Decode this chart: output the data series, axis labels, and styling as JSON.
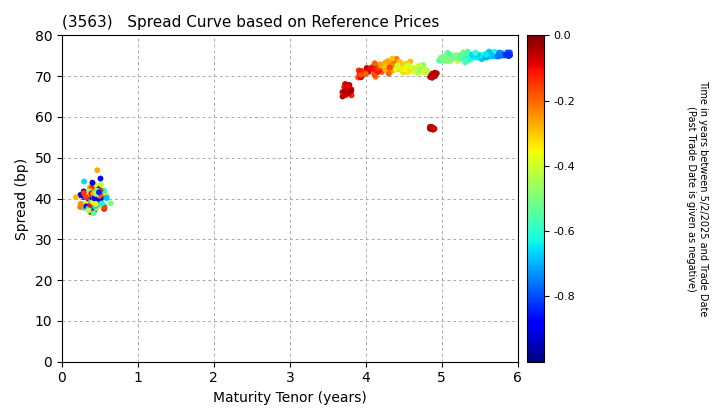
{
  "title": "(3563)   Spread Curve based on Reference Prices",
  "xlabel": "Maturity Tenor (years)",
  "ylabel": "Spread (bp)",
  "colorbar_label": "Time in years between 5/2/2025 and Trade Date\n(Past Trade Date is given as negative)",
  "xlim": [
    0,
    6
  ],
  "ylim": [
    0,
    80
  ],
  "xticks": [
    0,
    1,
    2,
    3,
    4,
    5,
    6
  ],
  "yticks": [
    0,
    10,
    20,
    30,
    40,
    50,
    60,
    70,
    80
  ],
  "cmap": "jet",
  "clim": [
    -1.0,
    0.0
  ],
  "cticks": [
    0.0,
    -0.2,
    -0.4,
    -0.6,
    -0.8
  ],
  "clusters": [
    {
      "x_center": 0.42,
      "x_std": 0.09,
      "y_center": 40.0,
      "y_std": 1.8,
      "c_min": -0.95,
      "c_max": -0.05,
      "n": 120
    },
    {
      "x_center": 3.75,
      "x_std": 0.04,
      "y_center": 66.5,
      "y_std": 0.7,
      "c_min": -0.12,
      "c_max": -0.02,
      "n": 35
    },
    {
      "x_center": 3.95,
      "x_std": 0.03,
      "y_center": 70.8,
      "y_std": 0.5,
      "c_min": -0.18,
      "c_max": -0.05,
      "n": 20
    },
    {
      "x_center": 4.15,
      "x_std": 0.06,
      "y_center": 71.5,
      "y_std": 0.6,
      "c_min": -0.22,
      "c_max": -0.08,
      "n": 25
    },
    {
      "x_center": 4.32,
      "x_std": 0.07,
      "y_center": 72.5,
      "y_std": 0.7,
      "c_min": -0.3,
      "c_max": -0.15,
      "n": 50
    },
    {
      "x_center": 4.52,
      "x_std": 0.06,
      "y_center": 72.0,
      "y_std": 0.6,
      "c_min": -0.42,
      "c_max": -0.28,
      "n": 40
    },
    {
      "x_center": 4.72,
      "x_std": 0.04,
      "y_center": 71.5,
      "y_std": 0.5,
      "c_min": -0.52,
      "c_max": -0.38,
      "n": 30
    },
    {
      "x_center": 4.88,
      "x_std": 0.025,
      "y_center": 70.2,
      "y_std": 0.4,
      "c_min": -0.08,
      "c_max": -0.02,
      "n": 15
    },
    {
      "x_center": 4.87,
      "x_std": 0.02,
      "y_center": 57.2,
      "y_std": 0.4,
      "c_min": -0.08,
      "c_max": -0.02,
      "n": 12
    },
    {
      "x_center": 5.08,
      "x_std": 0.07,
      "y_center": 74.2,
      "y_std": 0.5,
      "c_min": -0.58,
      "c_max": -0.42,
      "n": 35
    },
    {
      "x_center": 5.28,
      "x_std": 0.06,
      "y_center": 74.8,
      "y_std": 0.5,
      "c_min": -0.62,
      "c_max": -0.48,
      "n": 30
    },
    {
      "x_center": 5.48,
      "x_std": 0.05,
      "y_center": 75.0,
      "y_std": 0.5,
      "c_min": -0.7,
      "c_max": -0.55,
      "n": 25
    },
    {
      "x_center": 5.65,
      "x_std": 0.04,
      "y_center": 75.2,
      "y_std": 0.4,
      "c_min": -0.76,
      "c_max": -0.62,
      "n": 20
    },
    {
      "x_center": 5.78,
      "x_std": 0.03,
      "y_center": 75.3,
      "y_std": 0.4,
      "c_min": -0.82,
      "c_max": -0.68,
      "n": 15
    },
    {
      "x_center": 5.88,
      "x_std": 0.03,
      "y_center": 75.2,
      "y_std": 0.4,
      "c_min": -0.88,
      "c_max": -0.75,
      "n": 12
    }
  ],
  "background_color": "#ffffff",
  "grid_color": "#aaaaaa",
  "marker_size": 18
}
